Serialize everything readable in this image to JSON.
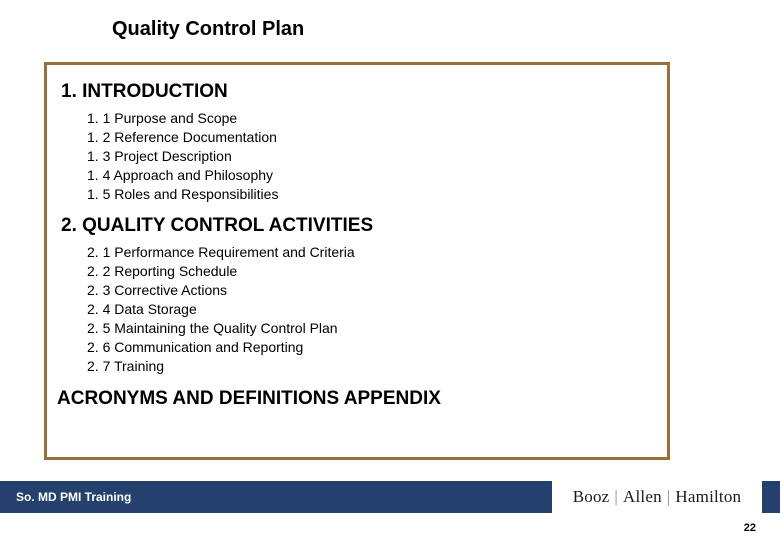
{
  "title": "Quality Control Plan",
  "box_border_color": "#98703a",
  "sections": [
    {
      "heading": "1. INTRODUCTION",
      "items": [
        "1. 1 Purpose and Scope",
        "1. 2 Reference Documentation",
        "1. 3 Project Description",
        "1. 4 Approach and Philosophy",
        "1. 5 Roles and Responsibilities"
      ]
    },
    {
      "heading": "2. QUALITY CONTROL ACTIVITIES",
      "items": [
        "2. 1 Performance Requirement and Criteria",
        "2. 2 Reporting Schedule",
        "2. 3 Corrective Actions",
        "2. 4 Data Storage",
        "2. 5 Maintaining the Quality Control Plan",
        "2. 6 Communication and Reporting",
        "2. 7 Training"
      ]
    }
  ],
  "appendix": "ACRONYMS AND DEFINITIONS APPENDIX",
  "footer": {
    "text": "So. MD PMI Training",
    "bar_color": "#24406c",
    "text_color": "#ffffff"
  },
  "logo": {
    "part1": "Booz",
    "part2": "Allen",
    "part3": "Hamilton",
    "sep": "|"
  },
  "page_number": "22"
}
